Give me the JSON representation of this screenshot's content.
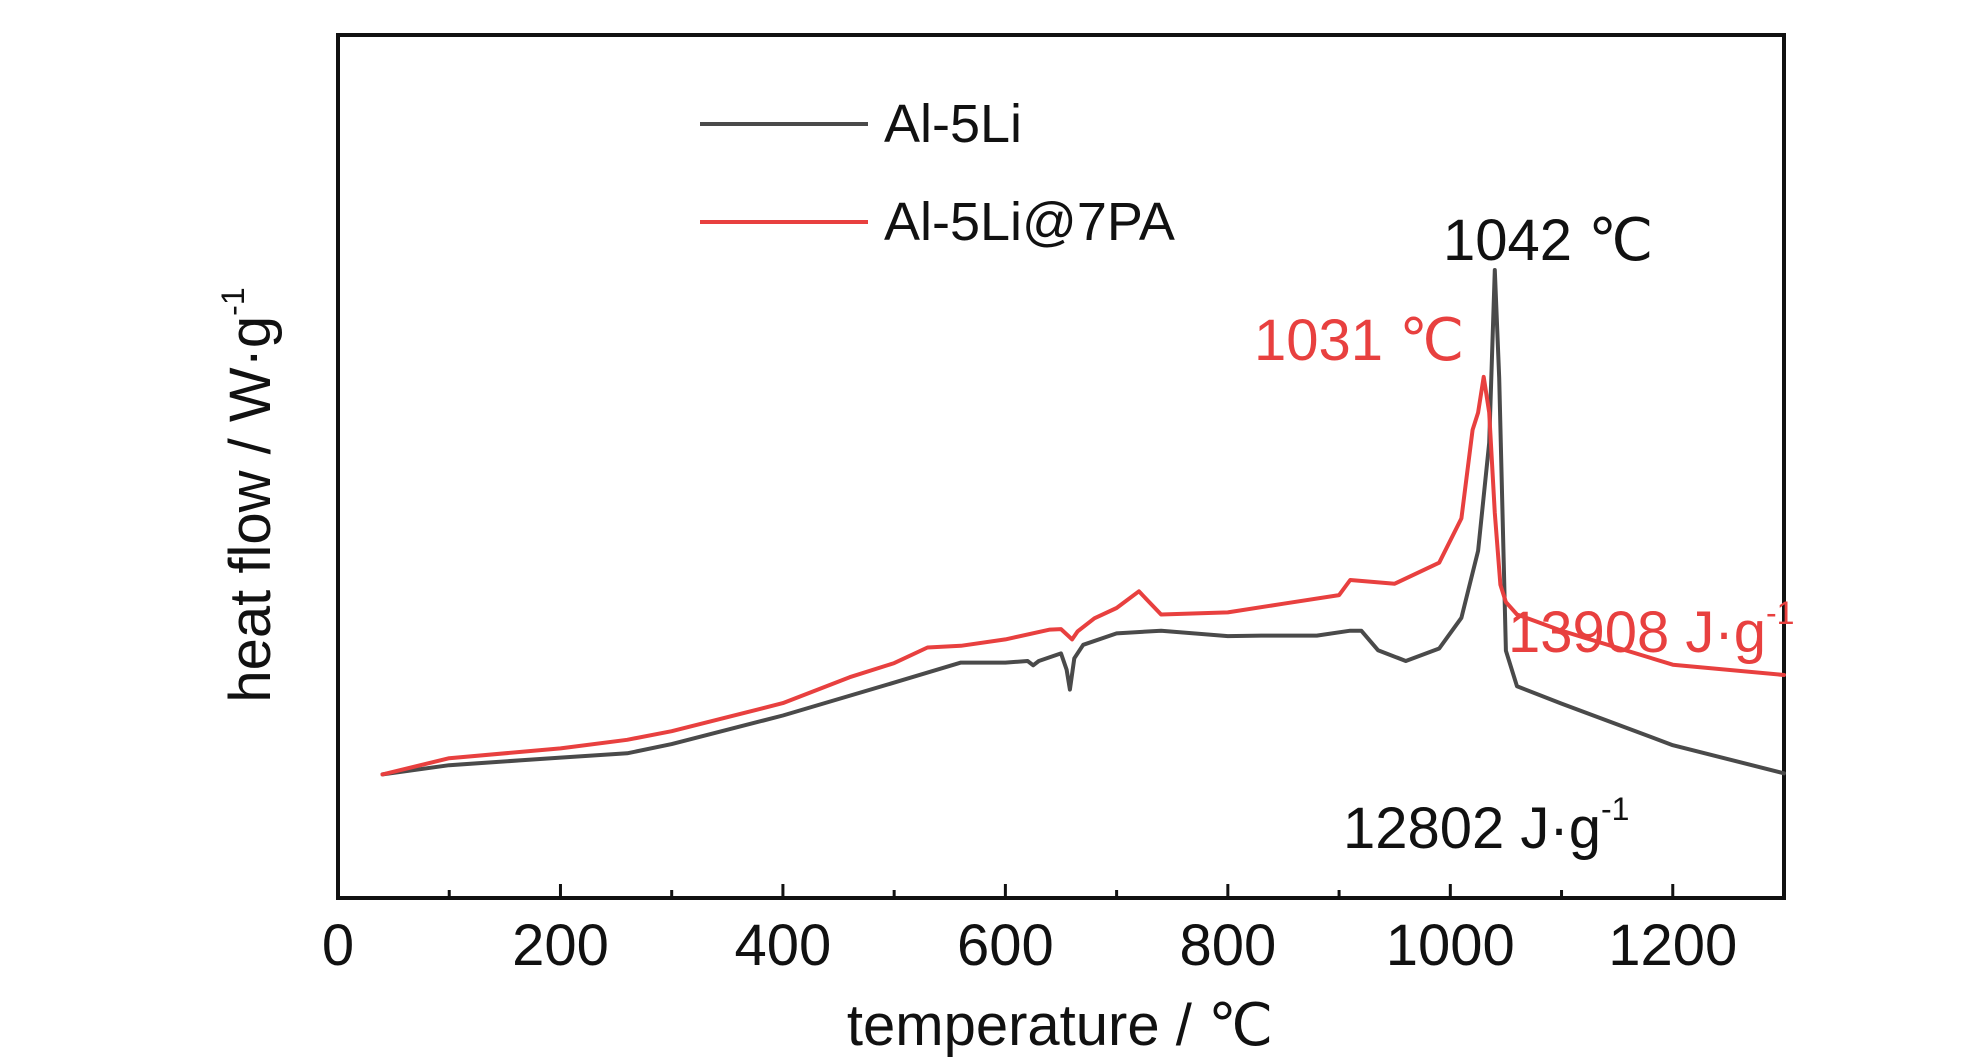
{
  "chart_data": {
    "type": "line",
    "xlabel": "temperature / ℃",
    "ylabel": "heat flow / W·g",
    "ylabel_sup": "-1",
    "xlim": [
      0,
      1300
    ],
    "x_ticks": [
      0,
      200,
      400,
      600,
      800,
      1000,
      1200
    ],
    "x_tick_labels": [
      "0",
      "200",
      "400",
      "600",
      "800",
      "1000",
      "1200"
    ],
    "y_ticks_shown": false,
    "ylim": [
      0,
      100
    ],
    "legend_position": "top-center",
    "grid": false,
    "series": [
      {
        "name": "Al-5Li",
        "color": "#4a4a4a",
        "x": [
          40,
          100,
          200,
          260,
          300,
          400,
          500,
          560,
          600,
          620,
          625,
          630,
          650,
          655,
          658,
          662,
          670,
          700,
          740,
          800,
          830,
          880,
          910,
          920,
          935,
          960,
          990,
          1010,
          1025,
          1035,
          1040,
          1044,
          1050,
          1060,
          1100,
          1200,
          1300
        ],
        "y": [
          6.6,
          8.3,
          9.7,
          10.5,
          12.2,
          17.5,
          23.6,
          27.3,
          27.3,
          27.6,
          26.8,
          27.6,
          29.0,
          26.0,
          22.3,
          28.1,
          30.6,
          32.7,
          33.2,
          32.2,
          32.3,
          32.3,
          33.2,
          33.2,
          29.6,
          27.6,
          29.9,
          35.6,
          48.0,
          68.0,
          100.0,
          80.0,
          29.5,
          22.9,
          19.7,
          12.0,
          6.8
        ]
      },
      {
        "name": "Al-5Li@7PA",
        "color": "#e8403f",
        "x": [
          40,
          100,
          200,
          260,
          300,
          400,
          460,
          500,
          530,
          560,
          600,
          640,
          650,
          660,
          665,
          680,
          700,
          720,
          740,
          800,
          850,
          900,
          910,
          950,
          990,
          1010,
          1020,
          1025,
          1030,
          1035,
          1040,
          1045,
          1050,
          1060,
          1100,
          1200,
          1300
        ],
        "y": [
          6.6,
          9.6,
          11.4,
          13.0,
          14.6,
          19.8,
          24.6,
          27.2,
          30.1,
          30.4,
          31.6,
          33.4,
          33.5,
          31.6,
          33.1,
          35.5,
          37.4,
          40.5,
          36.2,
          36.6,
          38.2,
          39.8,
          42.6,
          41.9,
          45.8,
          54.0,
          70.4,
          73.6,
          80.2,
          73.6,
          55.0,
          41.7,
          38.5,
          36.2,
          33.2,
          26.9,
          25.0
        ]
      }
    ],
    "annotations": [
      {
        "text": "1042  ℃",
        "color": "#111111",
        "x": 1042,
        "y": 100
      },
      {
        "text": "1031  ℃",
        "color": "#e8403f",
        "x": 1031,
        "y": 80.2
      },
      {
        "text": "13908 J·g",
        "sup": "-1",
        "color": "#e8403f"
      },
      {
        "text": "12802 J·g",
        "sup": "-1",
        "color": "#111111"
      }
    ]
  }
}
